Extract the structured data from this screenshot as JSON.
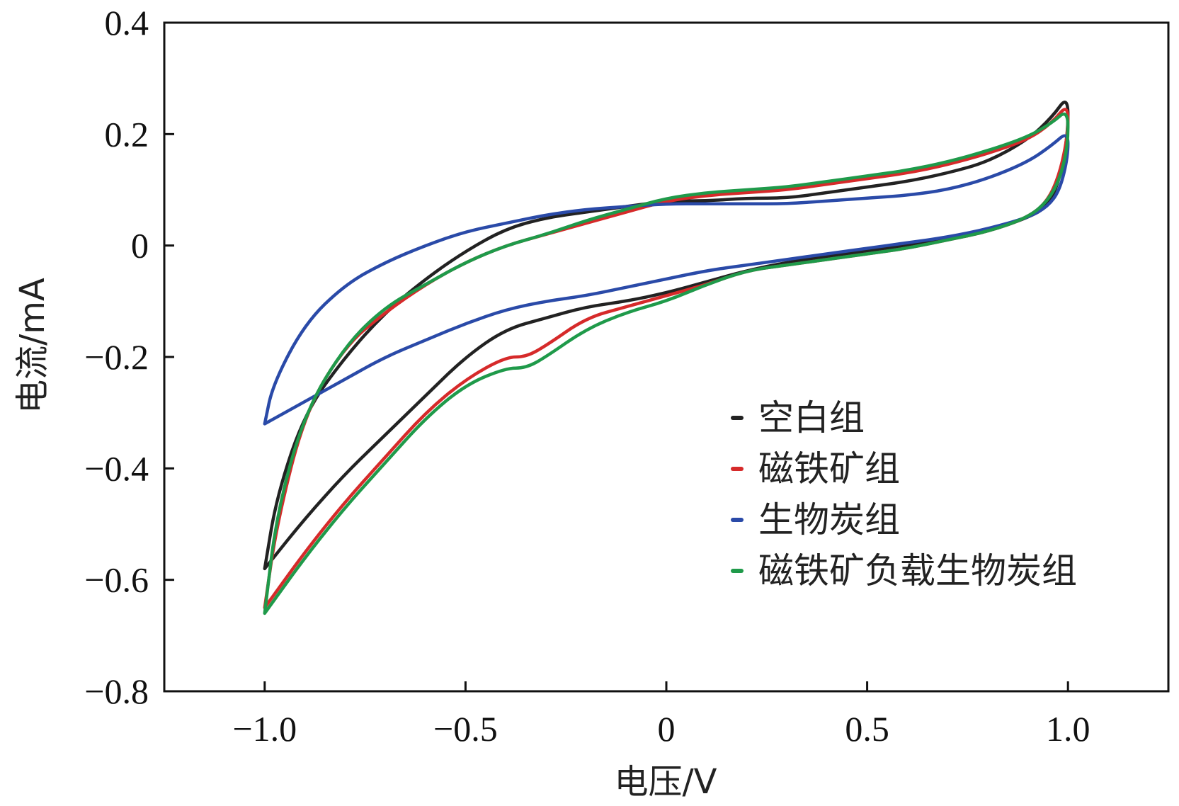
{
  "chart_data": {
    "type": "line",
    "title": "",
    "xlabel": "电压/V",
    "ylabel": "电流/mA",
    "xlim": [
      -1.25,
      1.25
    ],
    "ylim": [
      -0.8,
      0.4
    ],
    "xticks": [
      -1.0,
      -0.5,
      0,
      0.5,
      1.0
    ],
    "xtick_labels": [
      "−1.0",
      "−0.5",
      "0",
      "0.5",
      "1.0"
    ],
    "yticks": [
      0.4,
      0.2,
      0,
      -0.2,
      -0.4,
      -0.6,
      -0.8
    ],
    "ytick_labels": [
      "0.4",
      "0.2",
      "0",
      "−0.2",
      "−0.4",
      "−0.6",
      "−0.8"
    ],
    "grid": false,
    "legend_position": "lower-right",
    "series": [
      {
        "name": "空白组",
        "color": "#222222",
        "points": [
          [
            -1.0,
            -0.58
          ],
          [
            -0.97,
            -0.45
          ],
          [
            -0.9,
            -0.3
          ],
          [
            -0.8,
            -0.2
          ],
          [
            -0.7,
            -0.12
          ],
          [
            -0.6,
            -0.06
          ],
          [
            -0.5,
            -0.01
          ],
          [
            -0.4,
            0.03
          ],
          [
            -0.3,
            0.05
          ],
          [
            -0.2,
            0.06
          ],
          [
            -0.1,
            0.07
          ],
          [
            0.0,
            0.08
          ],
          [
            0.1,
            0.08
          ],
          [
            0.2,
            0.085
          ],
          [
            0.3,
            0.085
          ],
          [
            0.4,
            0.095
          ],
          [
            0.5,
            0.105
          ],
          [
            0.6,
            0.115
          ],
          [
            0.7,
            0.13
          ],
          [
            0.8,
            0.15
          ],
          [
            0.9,
            0.19
          ],
          [
            0.96,
            0.23
          ],
          [
            1.0,
            0.27
          ],
          [
            1.0,
            0.2
          ],
          [
            0.98,
            0.12
          ],
          [
            0.95,
            0.07
          ],
          [
            0.9,
            0.05
          ],
          [
            0.8,
            0.025
          ],
          [
            0.7,
            0.01
          ],
          [
            0.6,
            0.0
          ],
          [
            0.5,
            -0.01
          ],
          [
            0.4,
            -0.02
          ],
          [
            0.3,
            -0.03
          ],
          [
            0.2,
            -0.045
          ],
          [
            0.1,
            -0.065
          ],
          [
            0.0,
            -0.085
          ],
          [
            -0.1,
            -0.1
          ],
          [
            -0.2,
            -0.11
          ],
          [
            -0.3,
            -0.13
          ],
          [
            -0.4,
            -0.15
          ],
          [
            -0.5,
            -0.2
          ],
          [
            -0.6,
            -0.27
          ],
          [
            -0.7,
            -0.34
          ],
          [
            -0.8,
            -0.41
          ],
          [
            -0.9,
            -0.49
          ],
          [
            -1.0,
            -0.58
          ]
        ]
      },
      {
        "name": "磁铁矿组",
        "color": "#d62a2a",
        "points": [
          [
            -1.0,
            -0.65
          ],
          [
            -0.97,
            -0.5
          ],
          [
            -0.9,
            -0.3
          ],
          [
            -0.8,
            -0.18
          ],
          [
            -0.7,
            -0.12
          ],
          [
            -0.6,
            -0.07
          ],
          [
            -0.5,
            -0.03
          ],
          [
            -0.4,
            0.0
          ],
          [
            -0.3,
            0.02
          ],
          [
            -0.2,
            0.04
          ],
          [
            -0.1,
            0.06
          ],
          [
            0.0,
            0.08
          ],
          [
            0.1,
            0.09
          ],
          [
            0.2,
            0.095
          ],
          [
            0.3,
            0.1
          ],
          [
            0.4,
            0.11
          ],
          [
            0.5,
            0.12
          ],
          [
            0.6,
            0.13
          ],
          [
            0.7,
            0.145
          ],
          [
            0.8,
            0.165
          ],
          [
            0.9,
            0.19
          ],
          [
            0.96,
            0.22
          ],
          [
            1.0,
            0.255
          ],
          [
            1.0,
            0.2
          ],
          [
            0.98,
            0.13
          ],
          [
            0.95,
            0.08
          ],
          [
            0.9,
            0.05
          ],
          [
            0.8,
            0.025
          ],
          [
            0.7,
            0.01
          ],
          [
            0.6,
            -0.005
          ],
          [
            0.5,
            -0.015
          ],
          [
            0.4,
            -0.025
          ],
          [
            0.3,
            -0.035
          ],
          [
            0.2,
            -0.045
          ],
          [
            0.1,
            -0.07
          ],
          [
            0.0,
            -0.09
          ],
          [
            -0.1,
            -0.11
          ],
          [
            -0.2,
            -0.13
          ],
          [
            -0.3,
            -0.18
          ],
          [
            -0.35,
            -0.2
          ],
          [
            -0.4,
            -0.2
          ],
          [
            -0.5,
            -0.24
          ],
          [
            -0.6,
            -0.3
          ],
          [
            -0.7,
            -0.38
          ],
          [
            -0.8,
            -0.46
          ],
          [
            -0.9,
            -0.55
          ],
          [
            -1.0,
            -0.65
          ]
        ]
      },
      {
        "name": "生物炭组",
        "color": "#2a4aa8",
        "points": [
          [
            -1.0,
            -0.32
          ],
          [
            -0.98,
            -0.25
          ],
          [
            -0.9,
            -0.14
          ],
          [
            -0.8,
            -0.07
          ],
          [
            -0.7,
            -0.03
          ],
          [
            -0.6,
            0.0
          ],
          [
            -0.5,
            0.025
          ],
          [
            -0.4,
            0.04
          ],
          [
            -0.3,
            0.055
          ],
          [
            -0.2,
            0.065
          ],
          [
            -0.1,
            0.07
          ],
          [
            0.0,
            0.075
          ],
          [
            0.1,
            0.075
          ],
          [
            0.2,
            0.075
          ],
          [
            0.3,
            0.075
          ],
          [
            0.4,
            0.08
          ],
          [
            0.5,
            0.085
          ],
          [
            0.6,
            0.09
          ],
          [
            0.7,
            0.1
          ],
          [
            0.8,
            0.12
          ],
          [
            0.9,
            0.15
          ],
          [
            0.96,
            0.18
          ],
          [
            1.0,
            0.205
          ],
          [
            1.0,
            0.16
          ],
          [
            0.98,
            0.1
          ],
          [
            0.95,
            0.07
          ],
          [
            0.9,
            0.05
          ],
          [
            0.8,
            0.03
          ],
          [
            0.7,
            0.015
          ],
          [
            0.6,
            0.005
          ],
          [
            0.5,
            -0.005
          ],
          [
            0.4,
            -0.015
          ],
          [
            0.3,
            -0.025
          ],
          [
            0.2,
            -0.035
          ],
          [
            0.1,
            -0.045
          ],
          [
            0.0,
            -0.06
          ],
          [
            -0.1,
            -0.075
          ],
          [
            -0.2,
            -0.09
          ],
          [
            -0.3,
            -0.1
          ],
          [
            -0.4,
            -0.115
          ],
          [
            -0.5,
            -0.14
          ],
          [
            -0.6,
            -0.17
          ],
          [
            -0.7,
            -0.2
          ],
          [
            -0.8,
            -0.24
          ],
          [
            -0.9,
            -0.28
          ],
          [
            -1.0,
            -0.32
          ]
        ]
      },
      {
        "name": "磁铁矿负载生物炭组",
        "color": "#1f9a4a",
        "points": [
          [
            -1.0,
            -0.66
          ],
          [
            -0.97,
            -0.48
          ],
          [
            -0.9,
            -0.3
          ],
          [
            -0.8,
            -0.18
          ],
          [
            -0.7,
            -0.11
          ],
          [
            -0.6,
            -0.07
          ],
          [
            -0.5,
            -0.03
          ],
          [
            -0.4,
            0.0
          ],
          [
            -0.3,
            0.02
          ],
          [
            -0.2,
            0.045
          ],
          [
            -0.1,
            0.065
          ],
          [
            0.0,
            0.085
          ],
          [
            0.1,
            0.095
          ],
          [
            0.2,
            0.1
          ],
          [
            0.3,
            0.105
          ],
          [
            0.4,
            0.115
          ],
          [
            0.5,
            0.125
          ],
          [
            0.6,
            0.135
          ],
          [
            0.7,
            0.15
          ],
          [
            0.8,
            0.17
          ],
          [
            0.9,
            0.195
          ],
          [
            0.96,
            0.22
          ],
          [
            1.0,
            0.245
          ],
          [
            1.0,
            0.18
          ],
          [
            0.98,
            0.12
          ],
          [
            0.95,
            0.08
          ],
          [
            0.9,
            0.05
          ],
          [
            0.8,
            0.025
          ],
          [
            0.7,
            0.01
          ],
          [
            0.6,
            -0.005
          ],
          [
            0.5,
            -0.015
          ],
          [
            0.4,
            -0.025
          ],
          [
            0.3,
            -0.035
          ],
          [
            0.2,
            -0.045
          ],
          [
            0.1,
            -0.07
          ],
          [
            0.0,
            -0.1
          ],
          [
            -0.1,
            -0.12
          ],
          [
            -0.2,
            -0.15
          ],
          [
            -0.3,
            -0.2
          ],
          [
            -0.35,
            -0.22
          ],
          [
            -0.4,
            -0.22
          ],
          [
            -0.5,
            -0.25
          ],
          [
            -0.6,
            -0.31
          ],
          [
            -0.7,
            -0.39
          ],
          [
            -0.8,
            -0.47
          ],
          [
            -0.9,
            -0.56
          ],
          [
            -1.0,
            -0.66
          ]
        ]
      }
    ]
  }
}
